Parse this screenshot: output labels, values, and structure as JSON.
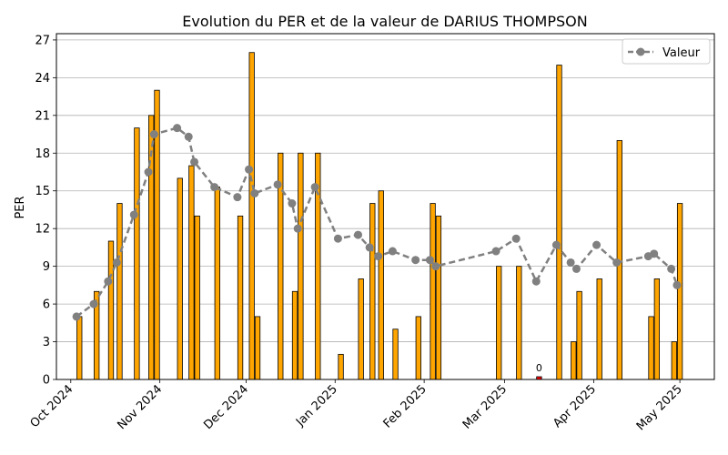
{
  "chart_data": {
    "type": "bar",
    "title": "Evolution du PER et de la valeur de DARIUS THOMPSON",
    "ylabel": "PER",
    "xlabel": "",
    "ylim": [
      0,
      27.5
    ],
    "xlim": [
      "2024-09-26",
      "2025-05-13"
    ],
    "yticks": [
      0,
      3,
      6,
      9,
      12,
      15,
      18,
      21,
      24,
      27
    ],
    "xticks": [
      {
        "date": "2024-10-01",
        "label": "Oct 2024"
      },
      {
        "date": "2024-11-01",
        "label": "Nov 2024"
      },
      {
        "date": "2024-12-01",
        "label": "Dec 2024"
      },
      {
        "date": "2025-01-01",
        "label": "Jan 2025"
      },
      {
        "date": "2025-02-01",
        "label": "Feb 2025"
      },
      {
        "date": "2025-03-01",
        "label": "Mar 2025"
      },
      {
        "date": "2025-04-01",
        "label": "Apr 2025"
      },
      {
        "date": "2025-05-01",
        "label": "May 2025"
      }
    ],
    "grid": "y",
    "legend": {
      "position": "top-right",
      "entries": [
        "Valeur"
      ]
    },
    "colors": {
      "bar": "#FFA500",
      "bar_edge": "#000000",
      "zero_bar": "#FF0000",
      "line": "#808080"
    },
    "bars": [
      {
        "date": "2024-10-04",
        "value": 5
      },
      {
        "date": "2024-10-10",
        "value": 7
      },
      {
        "date": "2024-10-15",
        "value": 11
      },
      {
        "date": "2024-10-18",
        "value": 14
      },
      {
        "date": "2024-10-24",
        "value": 20
      },
      {
        "date": "2024-10-29",
        "value": 21
      },
      {
        "date": "2024-10-31",
        "value": 23
      },
      {
        "date": "2024-11-08",
        "value": 16
      },
      {
        "date": "2024-11-12",
        "value": 17
      },
      {
        "date": "2024-11-14",
        "value": 13
      },
      {
        "date": "2024-11-21",
        "value": 15.3
      },
      {
        "date": "2024-11-29",
        "value": 13
      },
      {
        "date": "2024-12-03",
        "value": 26
      },
      {
        "date": "2024-12-05",
        "value": 5
      },
      {
        "date": "2024-12-13",
        "value": 18
      },
      {
        "date": "2024-12-18",
        "value": 7
      },
      {
        "date": "2024-12-20",
        "value": 18
      },
      {
        "date": "2024-12-26",
        "value": 18
      },
      {
        "date": "2025-01-03",
        "value": 2
      },
      {
        "date": "2025-01-10",
        "value": 8
      },
      {
        "date": "2025-01-14",
        "value": 14
      },
      {
        "date": "2025-01-17",
        "value": 15
      },
      {
        "date": "2025-01-22",
        "value": 4
      },
      {
        "date": "2025-01-30",
        "value": 5
      },
      {
        "date": "2025-02-04",
        "value": 14
      },
      {
        "date": "2025-02-06",
        "value": 13
      },
      {
        "date": "2025-02-27",
        "value": 9
      },
      {
        "date": "2025-03-06",
        "value": 9
      },
      {
        "date": "2025-03-13",
        "value": 0,
        "label": "0"
      },
      {
        "date": "2025-03-20",
        "value": 25
      },
      {
        "date": "2025-03-25",
        "value": 3
      },
      {
        "date": "2025-03-27",
        "value": 7
      },
      {
        "date": "2025-04-03",
        "value": 8
      },
      {
        "date": "2025-04-10",
        "value": 19
      },
      {
        "date": "2025-04-21",
        "value": 5
      },
      {
        "date": "2025-04-23",
        "value": 8
      },
      {
        "date": "2025-04-29",
        "value": 3
      },
      {
        "date": "2025-05-01",
        "value": 14
      }
    ],
    "series": [
      {
        "name": "Valeur",
        "points": [
          {
            "date": "2024-10-03",
            "value": 5.0
          },
          {
            "date": "2024-10-09",
            "value": 6.0
          },
          {
            "date": "2024-10-14",
            "value": 7.8
          },
          {
            "date": "2024-10-17",
            "value": 9.3
          },
          {
            "date": "2024-10-23",
            "value": 13.1
          },
          {
            "date": "2024-10-28",
            "value": 16.5
          },
          {
            "date": "2024-10-30",
            "value": 19.5
          },
          {
            "date": "2024-11-07",
            "value": 20.0
          },
          {
            "date": "2024-11-11",
            "value": 19.3
          },
          {
            "date": "2024-11-13",
            "value": 17.3
          },
          {
            "date": "2024-11-20",
            "value": 15.3
          },
          {
            "date": "2024-11-28",
            "value": 14.5
          },
          {
            "date": "2024-12-02",
            "value": 16.7
          },
          {
            "date": "2024-12-04",
            "value": 14.8
          },
          {
            "date": "2024-12-12",
            "value": 15.5
          },
          {
            "date": "2024-12-17",
            "value": 14.0
          },
          {
            "date": "2024-12-19",
            "value": 12.0
          },
          {
            "date": "2024-12-25",
            "value": 15.3
          },
          {
            "date": "2025-01-02",
            "value": 11.2
          },
          {
            "date": "2025-01-09",
            "value": 11.5
          },
          {
            "date": "2025-01-13",
            "value": 10.5
          },
          {
            "date": "2025-01-16",
            "value": 9.8
          },
          {
            "date": "2025-01-21",
            "value": 10.2
          },
          {
            "date": "2025-01-29",
            "value": 9.5
          },
          {
            "date": "2025-02-03",
            "value": 9.5
          },
          {
            "date": "2025-02-05",
            "value": 9.0
          },
          {
            "date": "2025-02-26",
            "value": 10.2
          },
          {
            "date": "2025-03-05",
            "value": 11.2
          },
          {
            "date": "2025-03-12",
            "value": 7.8
          },
          {
            "date": "2025-03-19",
            "value": 10.7
          },
          {
            "date": "2025-03-24",
            "value": 9.3
          },
          {
            "date": "2025-03-26",
            "value": 8.8
          },
          {
            "date": "2025-04-02",
            "value": 10.7
          },
          {
            "date": "2025-04-09",
            "value": 9.3
          },
          {
            "date": "2025-04-20",
            "value": 9.8
          },
          {
            "date": "2025-04-22",
            "value": 10.0
          },
          {
            "date": "2025-04-28",
            "value": 8.8
          },
          {
            "date": "2025-04-30",
            "value": 7.5
          }
        ]
      }
    ]
  }
}
